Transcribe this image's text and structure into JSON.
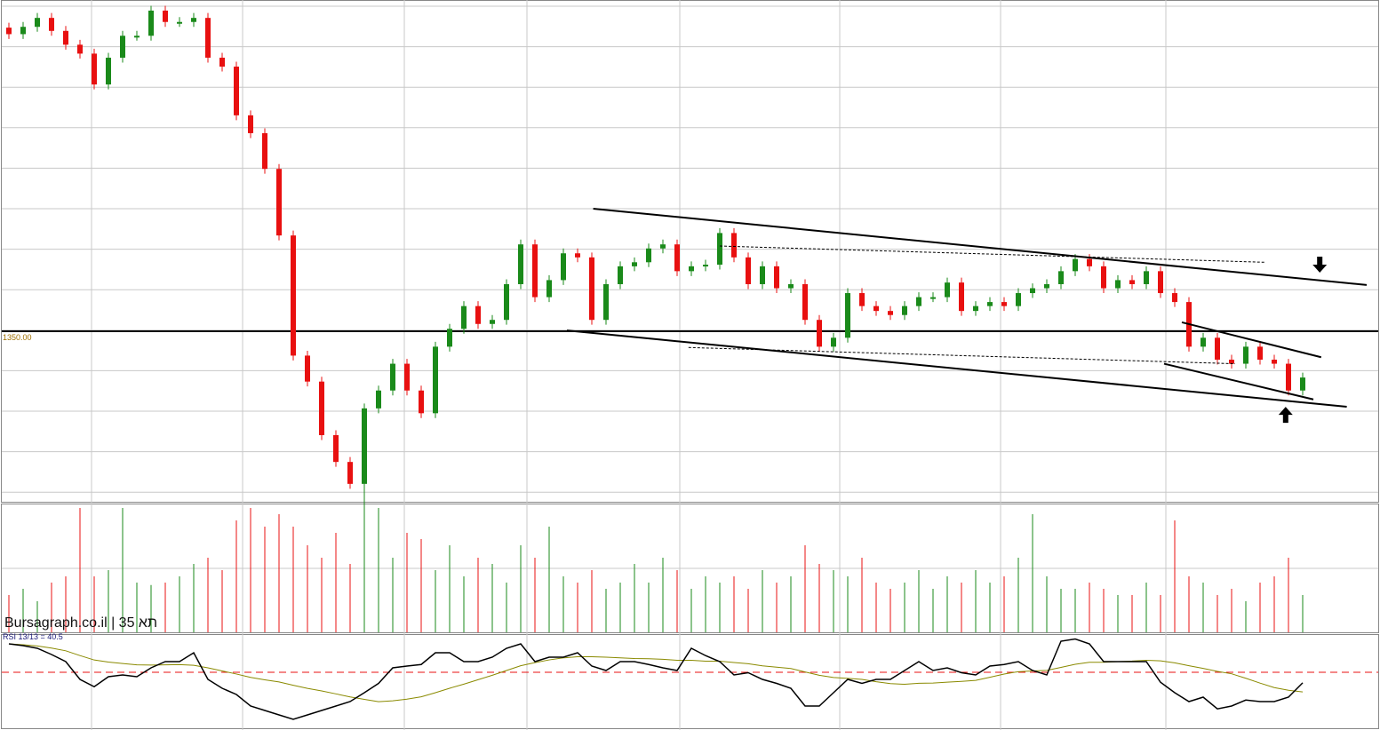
{
  "watermark": "Bursagraph.co.il | 35 תא",
  "price_label": "1350.00",
  "rsi_label": "RSI 13/13 = 40.5",
  "colors": {
    "up": "#1a8a1a",
    "down": "#e81010",
    "rsi": "#000000",
    "rsi_ma": "#8a8a00",
    "ref": "#e81010"
  },
  "chart_data": {
    "type": "candlestick",
    "title": "",
    "reference_price": 1350,
    "ylim": [
      1140,
      1750
    ],
    "closes": [
      1716,
      1725,
      1736,
      1720,
      1703,
      1692,
      1654,
      1687,
      1714,
      1714,
      1745,
      1731,
      1731,
      1736,
      1687,
      1676,
      1616,
      1594,
      1550,
      1468,
      1320,
      1288,
      1222,
      1189,
      1162,
      1255,
      1277,
      1310,
      1277,
      1249,
      1331,
      1353,
      1381,
      1359,
      1364,
      1408,
      1457,
      1392,
      1413,
      1446,
      1441,
      1364,
      1408,
      1430,
      1435,
      1452,
      1457,
      1424,
      1430,
      1432,
      1471,
      1441,
      1408,
      1430,
      1403,
      1408,
      1364,
      1331,
      1342,
      1397,
      1381,
      1375,
      1370,
      1381,
      1392,
      1392,
      1410,
      1375,
      1381,
      1386,
      1381,
      1397,
      1403,
      1408,
      1424,
      1439,
      1430,
      1403,
      1413,
      1408,
      1424,
      1397,
      1386,
      1331,
      1342,
      1315,
      1310,
      1331,
      1315,
      1310,
      1277,
      1293
    ],
    "volume": [
      30,
      35,
      25,
      40,
      45,
      100,
      45,
      50,
      100,
      40,
      38,
      40,
      45,
      55,
      60,
      50,
      90,
      100,
      85,
      95,
      85,
      70,
      60,
      80,
      55,
      120,
      100,
      60,
      80,
      75,
      50,
      70,
      45,
      60,
      55,
      40,
      70,
      60,
      85,
      45,
      40,
      50,
      35,
      40,
      55,
      40,
      60,
      50,
      35,
      45,
      40,
      45,
      35,
      50,
      40,
      45,
      70,
      55,
      50,
      45,
      60,
      40,
      35,
      40,
      50,
      35,
      45,
      40,
      50,
      40,
      45,
      60,
      95,
      45,
      35,
      35,
      40,
      35,
      30,
      30,
      40,
      30,
      90,
      45,
      40,
      30,
      35,
      25,
      40,
      45,
      60,
      30
    ],
    "rsi": [
      75.6,
      74,
      71.6,
      66,
      59.6,
      43.6,
      37,
      46,
      47.6,
      46,
      54,
      59.6,
      59.6,
      67.6,
      43.6,
      35.6,
      30,
      19.6,
      15.6,
      11.6,
      7.6,
      11.6,
      15.6,
      19.6,
      23.6,
      31.6,
      40,
      54,
      55.6,
      57,
      67.6,
      67.6,
      59.6,
      59.6,
      63.6,
      71.6,
      75.6,
      59.6,
      63.6,
      63.6,
      67.6,
      55.6,
      51.6,
      59.6,
      59.6,
      57,
      54,
      51.6,
      71.6,
      65,
      59.6,
      47.6,
      49.6,
      43.6,
      40,
      35.6,
      19.6,
      19.6,
      31.6,
      43.6,
      40,
      43.6,
      43.6,
      51.6,
      59.6,
      51.6,
      54,
      49.6,
      47.6,
      55.6,
      57,
      59.6,
      51.6,
      47.6,
      78,
      80,
      75.6,
      59.6,
      59.6,
      59.6,
      59.6,
      41,
      31.6,
      23.6,
      27.6,
      17,
      19.6,
      25,
      23.6,
      23.6,
      27.6,
      40.5
    ],
    "rsi_ref": 50,
    "rsi_ylim": [
      6,
      81
    ],
    "trendlines": [
      {
        "style": "solid",
        "from": [
          41.1,
          1501
        ],
        "to": [
          95.5,
          1407
        ]
      },
      {
        "style": "solid",
        "from": [
          39.25,
          1351
        ],
        "to": [
          94.1,
          1257
        ]
      },
      {
        "style": "solid",
        "from": [
          82.5,
          1361
        ],
        "to": [
          92.3,
          1318
        ]
      },
      {
        "style": "solid",
        "from": [
          81.25,
          1310
        ],
        "to": [
          91.75,
          1266
        ]
      },
      {
        "style": "dashed",
        "from": [
          50,
          1455
        ],
        "to": [
          88.3,
          1435
        ]
      },
      {
        "style": "dashed",
        "from": [
          47.8,
          1330
        ],
        "to": [
          86.25,
          1310
        ]
      }
    ],
    "arrows": [
      {
        "dir": "down",
        "at": [
          92.2,
          1432
        ]
      },
      {
        "dir": "up",
        "at": [
          89.8,
          1247
        ]
      }
    ]
  }
}
